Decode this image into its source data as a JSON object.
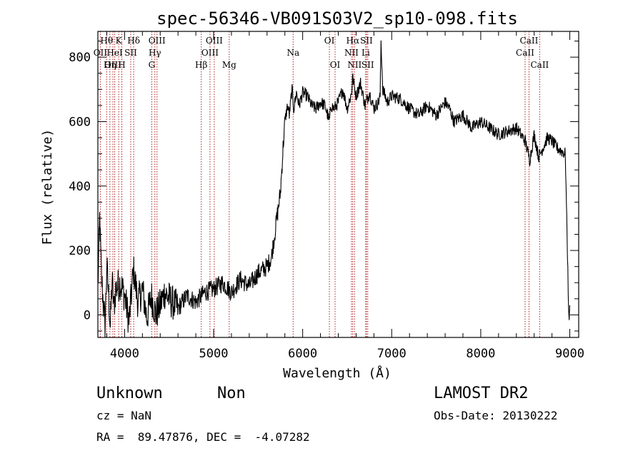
{
  "chart_data": {
    "type": "line",
    "title": "spec-56346-VB091S03V2_sp10-098.fits",
    "xlabel": "Wavelength (Å)",
    "ylabel": "Flux (relative)",
    "xlim": [
      3700,
      9100
    ],
    "ylim": [
      -70,
      880
    ],
    "xticks": [
      4000,
      5000,
      6000,
      7000,
      8000,
      9000
    ],
    "yticks": [
      0,
      200,
      400,
      600,
      800
    ],
    "spectrum": {
      "x": [
        3700,
        3720,
        3740,
        3760,
        3780,
        3800,
        3820,
        3840,
        3860,
        3880,
        3900,
        3950,
        4000,
        4050,
        4100,
        4150,
        4200,
        4250,
        4300,
        4350,
        4400,
        4450,
        4500,
        4600,
        4700,
        4800,
        4900,
        5000,
        5100,
        5200,
        5300,
        5400,
        5500,
        5600,
        5650,
        5700,
        5750,
        5780,
        5800,
        5830,
        5850,
        5880,
        5900,
        5930,
        5960,
        6000,
        6050,
        6100,
        6150,
        6200,
        6250,
        6300,
        6320,
        6350,
        6400,
        6450,
        6500,
        6550,
        6560,
        6600,
        6650,
        6700,
        6750,
        6800,
        6850,
        6870,
        6880,
        6900,
        6950,
        7000,
        7100,
        7200,
        7300,
        7400,
        7500,
        7600,
        7650,
        7700,
        7800,
        7900,
        8000,
        8100,
        8200,
        8300,
        8400,
        8500,
        8550,
        8600,
        8650,
        8700,
        8750,
        8800,
        8850,
        8900,
        8950,
        8990,
        9000
      ],
      "flux": [
        80,
        300,
        120,
        40,
        -30,
        150,
        60,
        -40,
        110,
        20,
        80,
        100,
        60,
        -20,
        140,
        40,
        80,
        -10,
        60,
        0,
        30,
        70,
        50,
        20,
        60,
        40,
        70,
        80,
        100,
        70,
        110,
        90,
        130,
        150,
        180,
        280,
        380,
        520,
        600,
        650,
        620,
        700,
        640,
        690,
        650,
        690,
        680,
        650,
        640,
        660,
        650,
        600,
        650,
        640,
        660,
        700,
        640,
        690,
        740,
        680,
        720,
        650,
        690,
        640,
        660,
        680,
        850,
        700,
        660,
        680,
        670,
        640,
        620,
        650,
        620,
        660,
        640,
        600,
        620,
        580,
        600,
        580,
        560,
        570,
        580,
        540,
        480,
        560,
        490,
        520,
        550,
        540,
        520,
        510,
        500,
        -20,
        30
      ]
    },
    "lines": [
      {
        "label": "Hθ",
        "wavelength": 3798,
        "row": 1
      },
      {
        "label": "OII",
        "wavelength": 3727,
        "row": 2
      },
      {
        "label": "OIII",
        "wavelength": 3869,
        "row": 3
      },
      {
        "label": "K",
        "wavelength": 3934,
        "row": 1
      },
      {
        "label": "HeI",
        "wavelength": 3889,
        "row": 2
      },
      {
        "label": "Hη",
        "wavelength": 3835,
        "row": 3
      },
      {
        "label": "Hδ",
        "wavelength": 4102,
        "row": 1
      },
      {
        "label": "SII",
        "wavelength": 4069,
        "row": 2
      },
      {
        "label": "H",
        "wavelength": 3969,
        "row": 3
      },
      {
        "label": "OIII",
        "wavelength": 4364,
        "row": 1
      },
      {
        "label": "Hγ",
        "wavelength": 4340,
        "row": 2
      },
      {
        "label": "G",
        "wavelength": 4305,
        "row": 3
      },
      {
        "label": "OIII",
        "wavelength": 5007,
        "row": 1
      },
      {
        "label": "OIII",
        "wavelength": 4959,
        "row": 2
      },
      {
        "label": "Hβ",
        "wavelength": 4861,
        "row": 3
      },
      {
        "label": "Mg",
        "wavelength": 5175,
        "row": 3
      },
      {
        "label": "Na",
        "wavelength": 5893,
        "row": 2
      },
      {
        "label": "OI",
        "wavelength": 6300,
        "row": 1
      },
      {
        "label": "OI",
        "wavelength": 6364,
        "row": 3
      },
      {
        "label": "Hα",
        "wavelength": 6563,
        "row": 1
      },
      {
        "label": "NII",
        "wavelength": 6548,
        "row": 2
      },
      {
        "label": "NII",
        "wavelength": 6583,
        "row": 3
      },
      {
        "label": "SII",
        "wavelength": 6716,
        "row": 1
      },
      {
        "label": "Li",
        "wavelength": 6708,
        "row": 2
      },
      {
        "label": "SII",
        "wavelength": 6731,
        "row": 3
      },
      {
        "label": "CaII",
        "wavelength": 8542,
        "row": 1
      },
      {
        "label": "CaII",
        "wavelength": 8498,
        "row": 2
      },
      {
        "label": "CaII",
        "wavelength": 8662,
        "row": 3
      }
    ],
    "colors": {
      "spectrum": "#000000",
      "lines": "#b02020",
      "axes": "#000000"
    }
  },
  "info": {
    "class": "Unknown",
    "subclass": "Non",
    "survey": "LAMOST DR2",
    "redshift": "cz = NaN",
    "obs_date": "Obs-Date: 20130222",
    "coords": "RA =  89.47876, DEC =  -4.07282"
  }
}
